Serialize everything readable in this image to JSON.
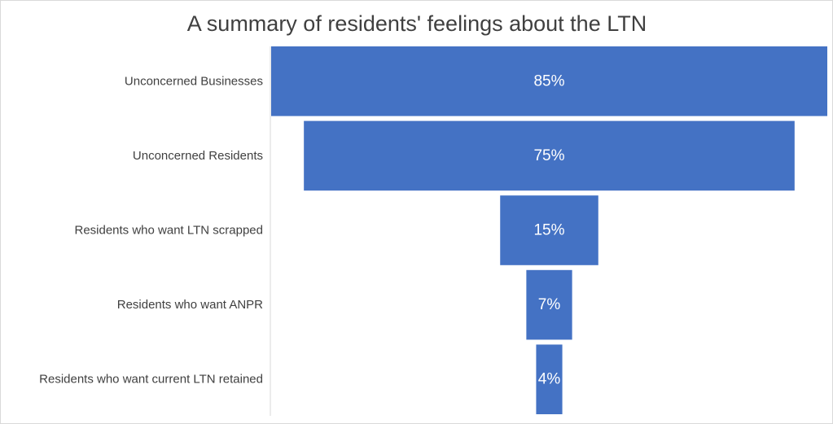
{
  "chart_data": {
    "type": "bar",
    "subtype": "funnel",
    "title": "A summary of residents' feelings about the LTN",
    "categories": [
      "Unconcerned Businesses",
      "Unconcerned Residents",
      "Residents who want LTN scrapped",
      "Residents who want ANPR",
      "Residents who want current LTN retained"
    ],
    "values": [
      85,
      75,
      15,
      7,
      4
    ],
    "data_labels": [
      "85%",
      "75%",
      "15%",
      "7%",
      "4%"
    ],
    "unit": "%",
    "bar_color": "#4472C4",
    "label_color": "#FFFFFF",
    "grid": false,
    "legend": "none"
  }
}
